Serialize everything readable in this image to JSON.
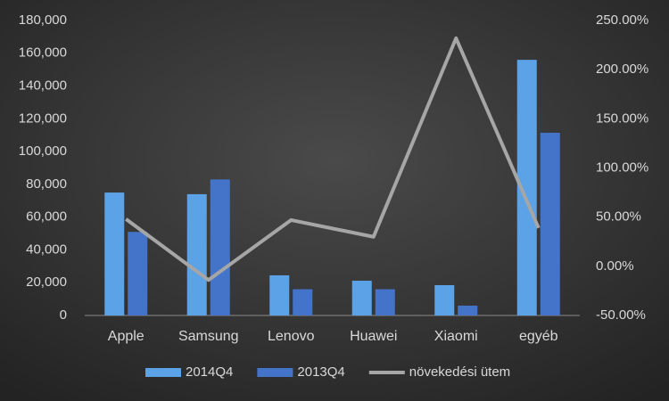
{
  "chart_data": {
    "type": "bar-line",
    "categories": [
      "Apple",
      "Samsung",
      "Lenovo",
      "Huawei",
      "Xiaomi",
      "egyéb"
    ],
    "series": [
      {
        "name": "2014Q4",
        "color": "#5ba3e6",
        "values": [
          75000,
          74000,
          24500,
          21200,
          18500,
          156000
        ]
      },
      {
        "name": "2013Q4",
        "color": "#4474c9",
        "values": [
          51000,
          83000,
          16000,
          16000,
          6000,
          111500
        ]
      },
      {
        "name": "növekedési ütem",
        "color": "#a6a6a6",
        "axis": "y2",
        "values": [
          48,
          -14,
          47,
          30,
          232,
          39
        ]
      }
    ],
    "ylim": [
      0,
      180000
    ],
    "yticks": [
      0,
      {
        "value": 20000,
        "label": "20,000"
      },
      {
        "value": 40000,
        "label": "40,000"
      },
      {
        "value": 60000,
        "label": "60,000"
      },
      {
        "value": 80000,
        "label": "80,000"
      },
      {
        "value": 100000,
        "label": "100,000"
      },
      {
        "value": 120000,
        "label": "120,000"
      },
      {
        "value": 140000,
        "label": "140,000"
      },
      {
        "value": 160000,
        "label": "160,000"
      },
      {
        "value": 180000,
        "label": "180,000"
      }
    ],
    "y2lim": [
      -50,
      250
    ],
    "y2ticks": [
      {
        "value": -50,
        "label": "-50.00%"
      },
      {
        "value": 0,
        "label": "0.00%"
      },
      {
        "value": 50,
        "label": "50.00%"
      },
      {
        "value": 100,
        "label": "100.00%"
      },
      {
        "value": 150,
        "label": "150.00%"
      },
      {
        "value": 200,
        "label": "200.00%"
      },
      {
        "value": 250,
        "label": "250.00%"
      }
    ],
    "legend": "bottom"
  }
}
